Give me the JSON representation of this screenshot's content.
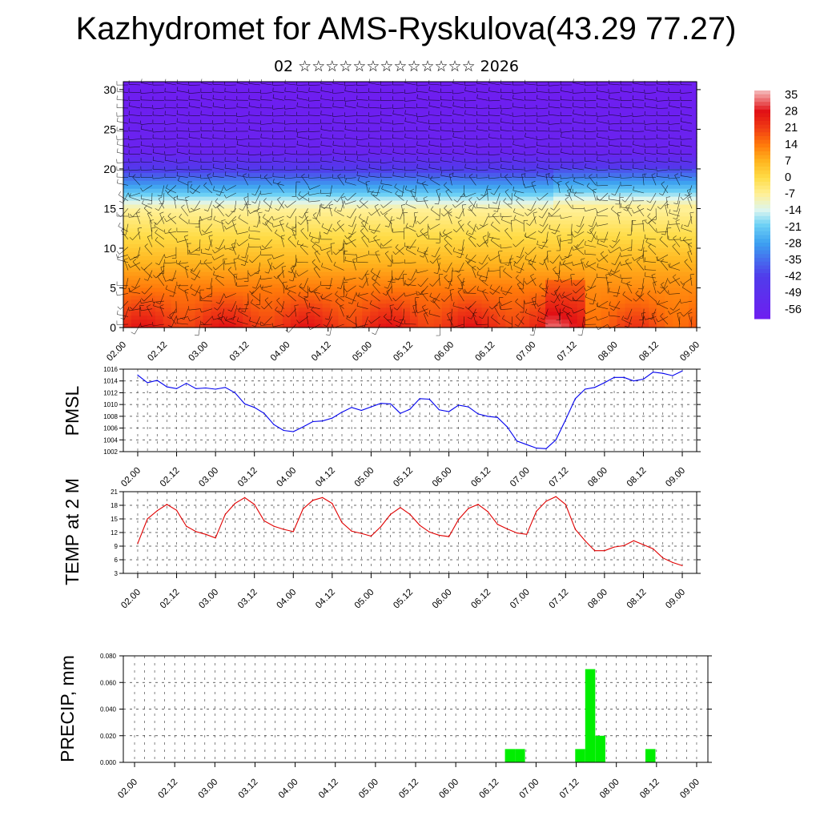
{
  "title": "Kazhydromet for AMS-Ryskulova(43.29 77.27)",
  "subtitle": "02 ☆☆☆☆☆☆☆☆☆☆☆☆☆ 2026",
  "time_ticks": [
    "02.00",
    "02.12",
    "03.00",
    "03.12",
    "04.00",
    "04.12",
    "05.00",
    "05.12",
    "06.00",
    "06.12",
    "07.00",
    "07.12",
    "08.00",
    "08.12",
    "09.00"
  ],
  "chart_data": [
    {
      "type": "heatmap",
      "name": "cross-section",
      "x": "time_ticks",
      "ylim": [
        0,
        31
      ],
      "yticks": [
        0,
        5,
        10,
        15,
        20,
        25,
        30
      ],
      "colorbar": {
        "labels": [
          "35",
          "28",
          "21",
          "14",
          "7",
          "0",
          "-7",
          "-14",
          "-21",
          "-28",
          "-35",
          "-42",
          "-49",
          "-56"
        ],
        "range": [
          -60,
          37
        ]
      },
      "colorbar_placement": "right",
      "grid": false
    },
    {
      "type": "line",
      "name": "pmsl",
      "ylabel": "PMSL",
      "color": "#0000ee",
      "ylim": [
        1002,
        1016
      ],
      "yticks": [
        "1002",
        "1004",
        "1006",
        "1008",
        "1010",
        "1012",
        "1014",
        "1016"
      ],
      "x": [
        0,
        0.25,
        0.5,
        0.75,
        1,
        1.25,
        1.5,
        1.75,
        2,
        2.25,
        2.5,
        2.75,
        3,
        3.25,
        3.5,
        3.75,
        4,
        4.25,
        4.5,
        4.75,
        5,
        5.25,
        5.5,
        5.75,
        6,
        6.25,
        6.5,
        6.75,
        7,
        7.25,
        7.5,
        7.75,
        8,
        8.25,
        8.5,
        8.75,
        9,
        9.25,
        9.5,
        9.75,
        10,
        10.25,
        10.5,
        10.75,
        11,
        11.25,
        11.5,
        11.75,
        12,
        12.25,
        12.5,
        12.75,
        13,
        13.25,
        13.5,
        13.75,
        14
      ],
      "values": [
        1015,
        1013.7,
        1014.1,
        1013,
        1012.7,
        1013.6,
        1012.7,
        1012.8,
        1012.6,
        1012.9,
        1012,
        1010.1,
        1009.5,
        1008.5,
        1006.6,
        1005.6,
        1005.4,
        1006.2,
        1007.1,
        1007.2,
        1007.7,
        1008.7,
        1009.5,
        1009,
        1009.6,
        1010.2,
        1010.1,
        1008.5,
        1009.2,
        1011,
        1010.9,
        1009.1,
        1008.8,
        1009.9,
        1009.6,
        1008.4,
        1008,
        1007.8,
        1006.2,
        1003.8,
        1003.2,
        1002.6,
        1002.5,
        1004,
        1007.4,
        1011,
        1012.6,
        1012.9,
        1013.7,
        1014.6,
        1014.6,
        1014,
        1014.3,
        1015.5,
        1015.3,
        1014.9,
        1015.7
      ],
      "grid": true
    },
    {
      "type": "line",
      "name": "temp",
      "ylabel": "TEMP at 2 M",
      "color": "#e00000",
      "ylim": [
        3,
        21
      ],
      "yticks": [
        "3",
        "6",
        "9",
        "12",
        "15",
        "18",
        "21"
      ],
      "x": [
        0,
        0.25,
        0.5,
        0.75,
        1,
        1.25,
        1.5,
        1.75,
        2,
        2.25,
        2.5,
        2.75,
        3,
        3.25,
        3.5,
        3.75,
        4,
        4.25,
        4.5,
        4.75,
        5,
        5.25,
        5.5,
        5.75,
        6,
        6.25,
        6.5,
        6.75,
        7,
        7.25,
        7.5,
        7.75,
        8,
        8.25,
        8.5,
        8.75,
        9,
        9.25,
        9.5,
        9.75,
        10,
        10.25,
        10.5,
        10.75,
        11,
        11.25,
        11.5,
        11.75,
        12,
        12.25,
        12.5,
        12.75,
        13,
        13.25,
        13.5,
        13.75,
        14
      ],
      "values": [
        9.6,
        15,
        16.8,
        18.2,
        16.9,
        13.4,
        12.2,
        11.6,
        10.8,
        16,
        18.4,
        19.7,
        18.2,
        14.6,
        13.4,
        12.7,
        12.2,
        17.2,
        19.1,
        19.7,
        18.4,
        14.2,
        12.3,
        11.8,
        11.2,
        13.3,
        16,
        17.5,
        16,
        13.6,
        12.1,
        11.4,
        11.1,
        14.9,
        17.3,
        18.2,
        16.6,
        13.8,
        12.8,
        11.9,
        11.6,
        16.7,
        18.9,
        19.9,
        18.2,
        12.7,
        10.2,
        8,
        8,
        8.8,
        9.1,
        10.2,
        9.3,
        8.4,
        6.4,
        5.4,
        4.7
      ],
      "grid": true
    },
    {
      "type": "bar",
      "name": "precip",
      "ylabel": "PRECIP, mm",
      "color": "#00ee00",
      "ylim": [
        0,
        0.08
      ],
      "yticks": [
        "0.000",
        "0.020",
        "0.040",
        "0.060",
        "0.080"
      ],
      "bars": [
        {
          "x": 9.35,
          "value": 0.01
        },
        {
          "x": 9.6,
          "value": 0.01
        },
        {
          "x": 11.1,
          "value": 0.01
        },
        {
          "x": 11.35,
          "value": 0.07
        },
        {
          "x": 11.6,
          "value": 0.02
        },
        {
          "x": 12.85,
          "value": 0.01
        }
      ],
      "bar_width": 0.25,
      "grid": true
    }
  ]
}
